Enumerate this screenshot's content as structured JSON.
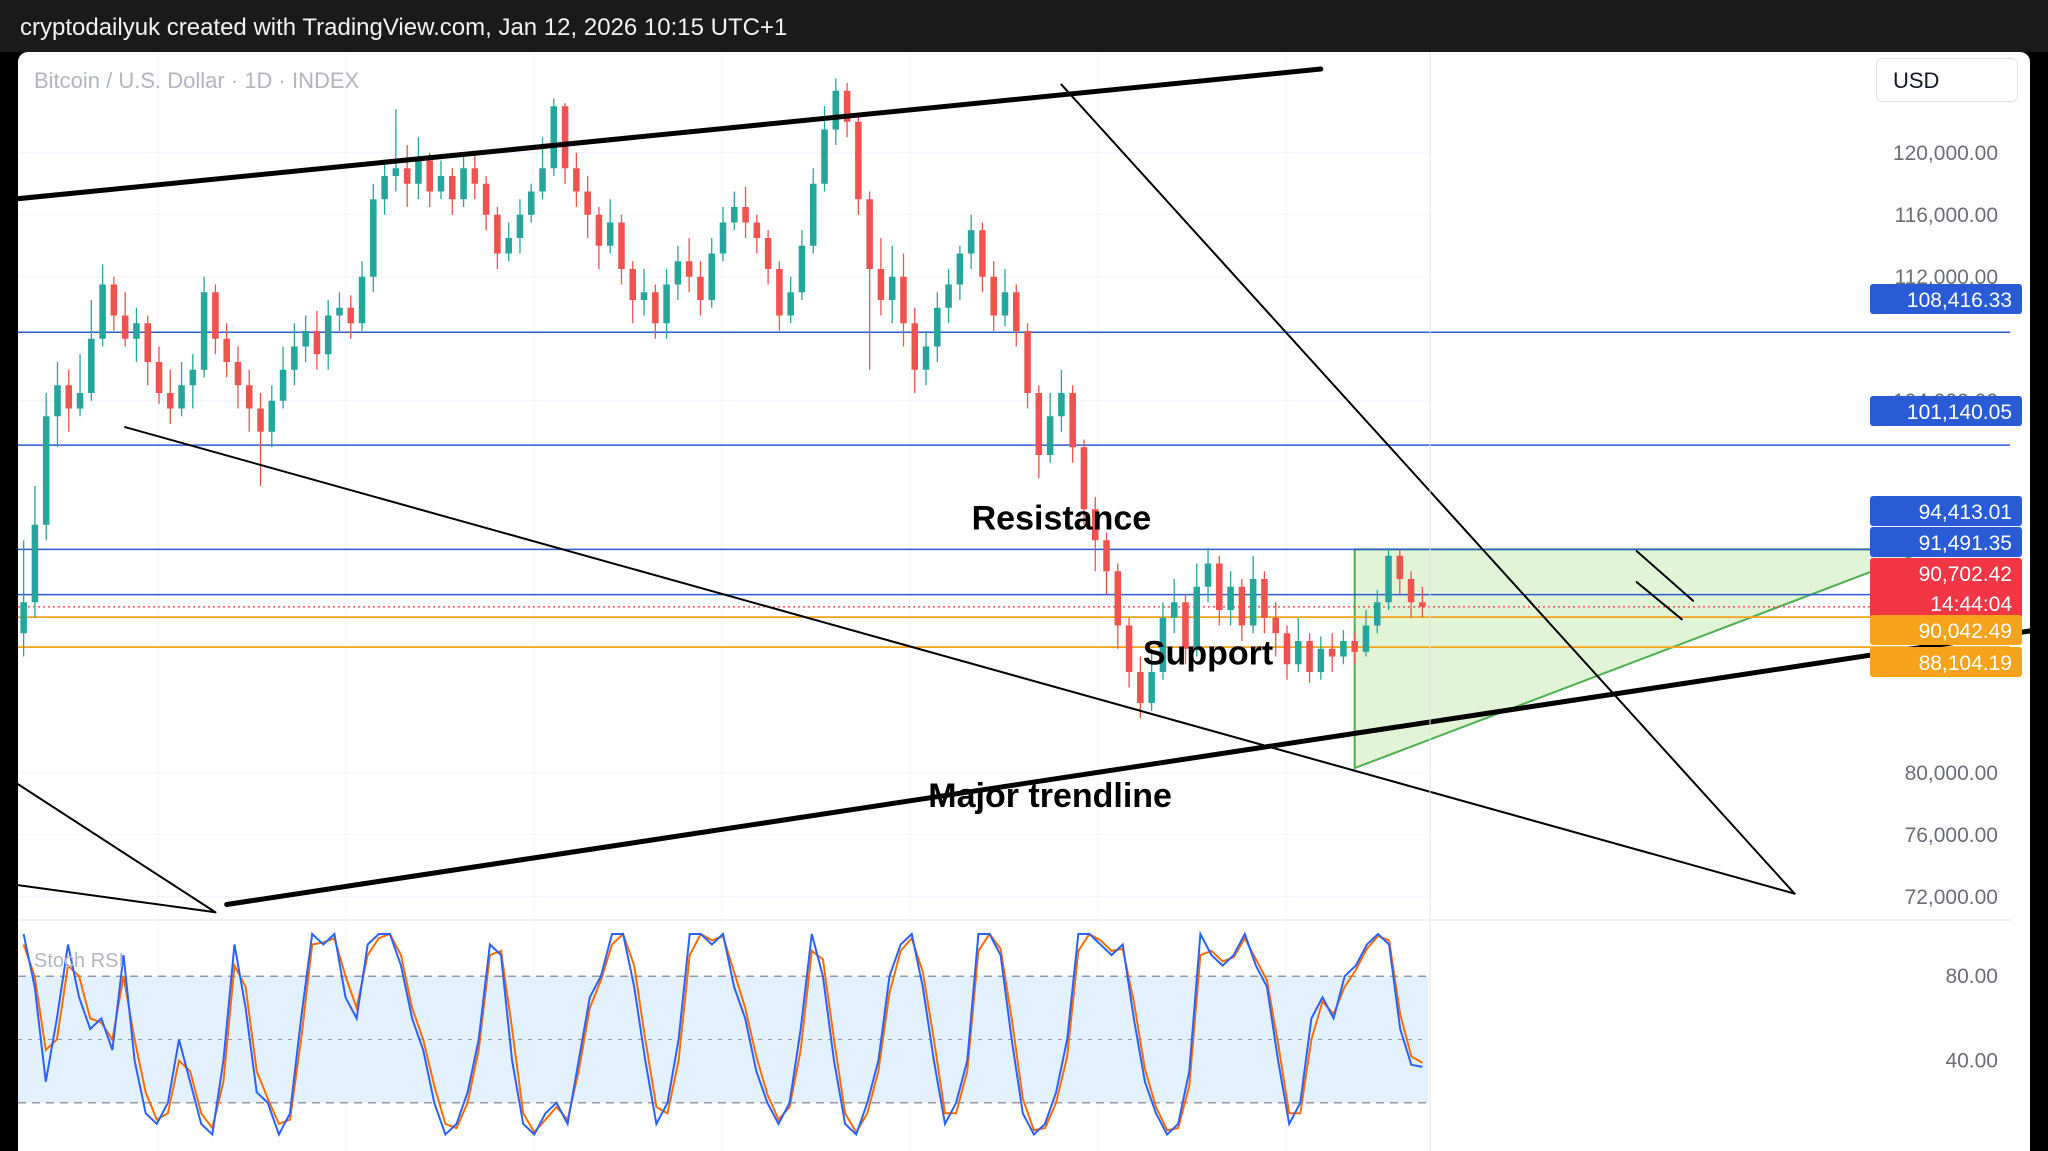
{
  "header": {
    "text": "cryptodailyuk created with TradingView.com, Jan 12, 2026 10:15 UTC+1"
  },
  "symbol": {
    "text": "Bitcoin / U.S. Dollar · 1D · INDEX"
  },
  "currency": {
    "label": "USD"
  },
  "colors": {
    "up": "#26a69a",
    "down": "#ef5350",
    "hline": "#2a5bd7",
    "support": "#f7a21b",
    "triangle_fill": "#d8f0c8",
    "triangle_stroke": "#4caf50",
    "stoch_k": "#2962ff",
    "stoch_d": "#ff6d00",
    "stoch_band": "#e3f0fd"
  },
  "chart_data": {
    "type": "candlestick",
    "title": "Bitcoin / U.S. Dollar · 1D · INDEX",
    "ylim": [
      70500,
      126500
    ],
    "y_ticks": [
      "120,000.00",
      "116,000.00",
      "112,000.00",
      "104,000.00",
      "80,000.00",
      "76,000.00",
      "72,000.00"
    ],
    "y_tick_values": [
      120000,
      116000,
      112000,
      104000,
      80000,
      76000,
      72000
    ],
    "candles": [
      [
        89000,
        91000,
        95000,
        87500
      ],
      [
        91000,
        96000,
        98500,
        90000
      ],
      [
        96000,
        103000,
        104500,
        95000
      ],
      [
        103000,
        105000,
        106500,
        101000
      ],
      [
        105000,
        103500,
        106000,
        102000
      ],
      [
        103500,
        104500,
        107000,
        103000
      ],
      [
        104500,
        108000,
        110500,
        104000
      ],
      [
        108000,
        111500,
        112800,
        107500
      ],
      [
        111500,
        109500,
        112000,
        108500
      ],
      [
        109500,
        108000,
        111000,
        107500
      ],
      [
        108000,
        109000,
        110000,
        106500
      ],
      [
        109000,
        106500,
        109500,
        105000
      ],
      [
        106500,
        104500,
        107500,
        103800
      ],
      [
        104500,
        103500,
        106000,
        102500
      ],
      [
        103500,
        105000,
        106500,
        103000
      ],
      [
        105000,
        106000,
        107000,
        103500
      ],
      [
        106000,
        111000,
        112000,
        105500
      ],
      [
        111000,
        108000,
        111500,
        107000
      ],
      [
        108000,
        106500,
        109000,
        105500
      ],
      [
        106500,
        105000,
        107500,
        103500
      ],
      [
        105000,
        103500,
        106000,
        102000
      ],
      [
        103500,
        102000,
        104500,
        98500
      ],
      [
        102000,
        104000,
        105000,
        101000
      ],
      [
        104000,
        106000,
        107500,
        103500
      ],
      [
        106000,
        107500,
        109000,
        105000
      ],
      [
        107500,
        108500,
        109500,
        106500
      ],
      [
        108500,
        107000,
        109800,
        106000
      ],
      [
        107000,
        109500,
        110500,
        106000
      ],
      [
        109500,
        110000,
        111000,
        108500
      ],
      [
        110000,
        109000,
        110800,
        108000
      ],
      [
        109000,
        112000,
        113000,
        108500
      ],
      [
        112000,
        117000,
        118000,
        111000
      ],
      [
        117000,
        118500,
        119500,
        116000
      ],
      [
        118500,
        119000,
        122800,
        117500
      ],
      [
        119000,
        118000,
        120500,
        116500
      ],
      [
        118000,
        119500,
        121000,
        117000
      ],
      [
        119500,
        117500,
        120000,
        116500
      ],
      [
        117500,
        118500,
        119500,
        117000
      ],
      [
        118500,
        117000,
        119000,
        116000
      ],
      [
        117000,
        119000,
        120000,
        116500
      ],
      [
        119000,
        118000,
        119800,
        117000
      ],
      [
        118000,
        116000,
        118500,
        115000
      ],
      [
        116000,
        113500,
        116500,
        112500
      ],
      [
        113500,
        114500,
        115500,
        113000
      ],
      [
        114500,
        116000,
        117000,
        113500
      ],
      [
        116000,
        117500,
        118000,
        115500
      ],
      [
        117500,
        119000,
        121000,
        117000
      ],
      [
        119000,
        123000,
        123500,
        118500
      ],
      [
        123000,
        119000,
        123200,
        118000
      ],
      [
        119000,
        117500,
        120000,
        116500
      ],
      [
        117500,
        116000,
        118500,
        114500
      ],
      [
        116000,
        114000,
        116500,
        112500
      ],
      [
        114000,
        115500,
        117000,
        113500
      ],
      [
        115500,
        112500,
        116000,
        111500
      ],
      [
        112500,
        110500,
        113000,
        109000
      ],
      [
        110500,
        111000,
        112500,
        109500
      ],
      [
        111000,
        109000,
        111500,
        108000
      ],
      [
        109000,
        111500,
        112500,
        108000
      ],
      [
        111500,
        113000,
        114000,
        110500
      ],
      [
        113000,
        112000,
        114500,
        111000
      ],
      [
        112000,
        110500,
        113000,
        109500
      ],
      [
        110500,
        113500,
        114500,
        110000
      ],
      [
        113500,
        115500,
        116500,
        113000
      ],
      [
        115500,
        116500,
        117500,
        115000
      ],
      [
        116500,
        115500,
        117800,
        114500
      ],
      [
        115500,
        114500,
        116000,
        113500
      ],
      [
        114500,
        112500,
        115000,
        111500
      ],
      [
        112500,
        109500,
        113000,
        108500
      ],
      [
        109500,
        111000,
        112000,
        109000
      ],
      [
        111000,
        114000,
        115000,
        110500
      ],
      [
        114000,
        118000,
        119000,
        113500
      ],
      [
        118000,
        121500,
        123000,
        117500
      ],
      [
        121500,
        124000,
        124800,
        120500
      ],
      [
        124000,
        122000,
        124500,
        121000
      ],
      [
        122000,
        117000,
        122500,
        116000
      ],
      [
        117000,
        112500,
        117500,
        106000
      ],
      [
        112500,
        110500,
        114500,
        109500
      ],
      [
        110500,
        112000,
        114000,
        109000
      ],
      [
        112000,
        109000,
        113500,
        107500
      ],
      [
        109000,
        106000,
        110000,
        104500
      ],
      [
        106000,
        107500,
        108500,
        105000
      ],
      [
        107500,
        110000,
        111000,
        106500
      ],
      [
        110000,
        111500,
        112500,
        109000
      ],
      [
        111500,
        113500,
        114000,
        110500
      ],
      [
        113500,
        115000,
        116000,
        112500
      ],
      [
        115000,
        112000,
        115500,
        111000
      ],
      [
        112000,
        109500,
        113000,
        108500
      ],
      [
        109500,
        111000,
        112500,
        108800
      ],
      [
        111000,
        108500,
        111500,
        107500
      ],
      [
        108500,
        104500,
        109000,
        103500
      ],
      [
        104500,
        100500,
        105000,
        99000
      ],
      [
        100500,
        103000,
        104500,
        100000
      ],
      [
        103000,
        104500,
        106000,
        102000
      ],
      [
        104500,
        101000,
        105000,
        100000
      ],
      [
        101000,
        97000,
        101500,
        96000
      ],
      [
        97000,
        95000,
        97800,
        93000
      ],
      [
        95000,
        93000,
        95500,
        91500
      ],
      [
        93000,
        89500,
        93500,
        88000
      ],
      [
        89500,
        86500,
        90000,
        85500
      ],
      [
        86500,
        84500,
        87500,
        83500
      ],
      [
        84500,
        86500,
        88000,
        84000
      ],
      [
        86500,
        90000,
        91000,
        86000
      ],
      [
        90000,
        91000,
        92500,
        89000
      ],
      [
        91000,
        88000,
        91500,
        87000
      ],
      [
        88000,
        92000,
        93500,
        87500
      ],
      [
        92000,
        93500,
        94500,
        91000
      ],
      [
        93500,
        90500,
        94000,
        89500
      ],
      [
        90500,
        92000,
        93000,
        89500
      ],
      [
        92000,
        89500,
        92500,
        88500
      ],
      [
        89500,
        92500,
        94000,
        89000
      ],
      [
        92500,
        90000,
        93000,
        89000
      ],
      [
        90000,
        89000,
        91000,
        87500
      ],
      [
        89000,
        87000,
        89500,
        86000
      ],
      [
        87000,
        88500,
        90000,
        86500
      ],
      [
        88500,
        86500,
        89000,
        85800
      ],
      [
        86500,
        88000,
        88800,
        86000
      ],
      [
        88000,
        87500,
        89000,
        86500
      ],
      [
        87500,
        88500,
        89200,
        87000
      ],
      [
        88500,
        87800,
        89000,
        87000
      ],
      [
        87800,
        89500,
        90500,
        87500
      ],
      [
        89500,
        91000,
        91800,
        89000
      ],
      [
        91000,
        94000,
        94500,
        90500
      ],
      [
        94000,
        92500,
        94400,
        91500
      ],
      [
        92500,
        91000,
        93000,
        90000
      ],
      [
        91000,
        90700,
        92000,
        90000
      ]
    ],
    "resistance_lines": [
      108416.33,
      101140.05,
      94413.01,
      91491.35
    ],
    "support_lines": [
      90042.49,
      88104.19
    ],
    "price_labels": [
      {
        "value": 108416.33,
        "text": "108,416.33",
        "color": "#2a5bd7",
        "text2": ""
      },
      {
        "value": 101140.05,
        "text": "101,140.05",
        "color": "#2a5bd7",
        "text2": ""
      },
      {
        "value": 94413.01,
        "text": "94,413.01",
        "color": "#2a5bd7",
        "text2": ""
      },
      {
        "value": 91491.35,
        "text": "91,491.35",
        "color": "#2a5bd7",
        "text2": ""
      },
      {
        "value": 90702.42,
        "text": "90,702.42",
        "color": "#f23645",
        "text2": "14:44:04"
      },
      {
        "value": 90042.49,
        "text": "90,042.49",
        "color": "#f7a21b",
        "text2": ""
      },
      {
        "value": 88104.19,
        "text": "88,104.19",
        "color": "#f7a21b",
        "text2": ""
      }
    ],
    "trendlines": [
      {
        "name": "upper-channel",
        "points": [
          [
            -1,
            117000
          ],
          [
            115,
            125400
          ]
        ],
        "width": 5
      },
      {
        "name": "major-trendline",
        "points": [
          [
            18,
            71500
          ],
          [
            196,
            91150
          ]
        ],
        "width": 5
      },
      {
        "name": "descending-lower",
        "points": [
          [
            9,
            102300
          ],
          [
            157,
            72200
          ]
        ],
        "width": 2
      },
      {
        "name": "descending-upper",
        "points": [
          [
            92,
            124400
          ],
          [
            157,
            72200
          ]
        ],
        "width": 2
      },
      {
        "name": "left-diagonal",
        "points": [
          [
            -1,
            79500
          ],
          [
            17,
            71000
          ]
        ],
        "width": 2
      },
      {
        "name": "left-diagonal-2",
        "points": [
          [
            -1,
            72800
          ],
          [
            17,
            71000
          ]
        ],
        "width": 2
      },
      {
        "name": "flag-upper",
        "points": [
          [
            143,
            94300
          ],
          [
            148,
            91100
          ]
        ],
        "width": 2
      },
      {
        "name": "flag-lower",
        "points": [
          [
            143,
            92300
          ],
          [
            147,
            89900
          ]
        ],
        "width": 2
      }
    ],
    "triangle": {
      "points": [
        [
          118,
          94413
        ],
        [
          169,
          94413
        ],
        [
          118,
          80300
        ]
      ]
    },
    "annotations": [
      {
        "text": "Resistance",
        "index": 92,
        "value": 95700
      },
      {
        "text": "Support",
        "index": 105,
        "value": 87000
      },
      {
        "text": "Major trendline",
        "index": 91,
        "value": 77800
      }
    ],
    "stoch_rsi": {
      "label": "Stoch RSI",
      "ylim": [
        0,
        100
      ],
      "y_ticks": [
        "80.00",
        "40.00"
      ],
      "y_tick_values": [
        80,
        40
      ],
      "bands": [
        80,
        20
      ],
      "mid": 50,
      "k": [
        100,
        75,
        30,
        60,
        95,
        70,
        55,
        60,
        45,
        90,
        40,
        15,
        10,
        20,
        50,
        30,
        10,
        5,
        40,
        95,
        65,
        25,
        20,
        5,
        15,
        60,
        100,
        95,
        100,
        70,
        60,
        95,
        100,
        100,
        85,
        60,
        45,
        20,
        5,
        10,
        25,
        50,
        95,
        90,
        40,
        10,
        5,
        15,
        20,
        10,
        40,
        70,
        80,
        100,
        100,
        75,
        40,
        10,
        20,
        50,
        100,
        100,
        95,
        100,
        75,
        60,
        35,
        20,
        10,
        20,
        55,
        100,
        80,
        40,
        10,
        5,
        20,
        40,
        80,
        95,
        100,
        75,
        40,
        10,
        20,
        40,
        100,
        100,
        90,
        50,
        15,
        5,
        10,
        25,
        50,
        100,
        100,
        95,
        90,
        95,
        60,
        30,
        15,
        5,
        10,
        35,
        100,
        90,
        85,
        90,
        100,
        85,
        75,
        40,
        10,
        20,
        60,
        70,
        60,
        80,
        85,
        95,
        100,
        95,
        55,
        38,
        37
      ],
      "d": [
        95,
        80,
        45,
        50,
        85,
        80,
        60,
        58,
        50,
        80,
        50,
        25,
        12,
        15,
        40,
        35,
        15,
        8,
        30,
        85,
        75,
        35,
        22,
        10,
        12,
        50,
        95,
        96,
        98,
        80,
        65,
        90,
        98,
        100,
        90,
        65,
        50,
        28,
        10,
        8,
        20,
        45,
        90,
        92,
        55,
        15,
        6,
        12,
        18,
        12,
        35,
        65,
        78,
        95,
        100,
        85,
        50,
        18,
        15,
        40,
        90,
        100,
        97,
        99,
        82,
        65,
        42,
        24,
        12,
        18,
        45,
        92,
        88,
        50,
        15,
        6,
        15,
        35,
        72,
        92,
        98,
        82,
        50,
        15,
        15,
        35,
        92,
        100,
        93,
        60,
        22,
        7,
        8,
        20,
        42,
        92,
        100,
        97,
        92,
        93,
        68,
        36,
        18,
        7,
        8,
        28,
        90,
        92,
        87,
        89,
        98,
        88,
        78,
        48,
        15,
        15,
        50,
        68,
        62,
        75,
        83,
        93,
        99,
        97,
        62,
        42,
        39
      ]
    }
  }
}
